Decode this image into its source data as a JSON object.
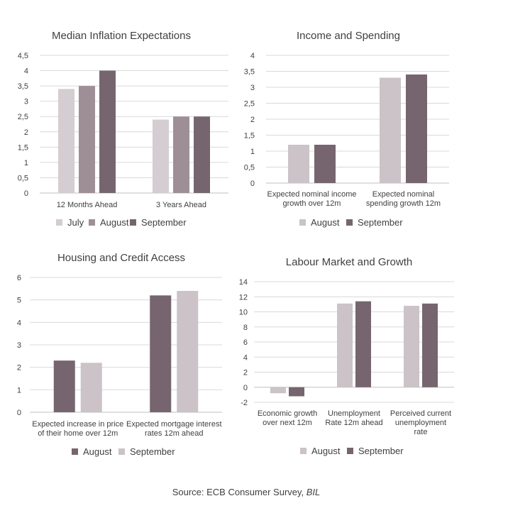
{
  "colors": {
    "July": "#d4cdd1",
    "August": "#9e8f97",
    "September": "#76656f",
    "August_light": "#cbc3c7",
    "September_light": "#cbc3c7",
    "August_dark": "#76656f",
    "September_dark": "#76656f",
    "grid": "#d9d9d9",
    "text": "#404040"
  },
  "source": {
    "prefix": "Source: ECB Consumer Survey, ",
    "italic": "BIL"
  },
  "chart_data": [
    {
      "id": "inflation",
      "type": "bar",
      "title": "Median Inflation Expectations",
      "categories": [
        [
          "12 Months Ahead"
        ],
        [
          "3 Years Ahead"
        ]
      ],
      "series": [
        {
          "name": "July",
          "values": [
            3.4,
            2.4
          ],
          "color": "#d4cdd1"
        },
        {
          "name": "August",
          "values": [
            3.5,
            2.5
          ],
          "color": "#9e8f97"
        },
        {
          "name": "September",
          "values": [
            4.0,
            2.5
          ],
          "color": "#76656f"
        }
      ],
      "ylim": [
        0,
        4.5
      ],
      "ticks": [
        "0",
        "0,5",
        "1",
        "1,5",
        "2",
        "2,5",
        "3",
        "3,5",
        "4",
        "4,5"
      ],
      "tickValues": [
        0,
        0.5,
        1,
        1.5,
        2,
        2.5,
        3,
        3.5,
        4,
        4.5
      ],
      "grid": true,
      "legend": "bottom"
    },
    {
      "id": "income",
      "type": "bar",
      "title": "Income and Spending",
      "categories": [
        [
          "Expected nominal income",
          "growth over 12m"
        ],
        [
          "Expected nominal",
          "spending growth 12m"
        ]
      ],
      "series": [
        {
          "name": "August",
          "values": [
            1.2,
            3.3
          ],
          "color": "#cbc3c7"
        },
        {
          "name": "September",
          "values": [
            1.2,
            3.4
          ],
          "color": "#76656f"
        }
      ],
      "ylim": [
        0,
        4
      ],
      "ticks": [
        "0",
        "0,5",
        "1",
        "1,5",
        "2",
        "2,5",
        "3",
        "3,5",
        "4"
      ],
      "tickValues": [
        0,
        0.5,
        1,
        1.5,
        2,
        2.5,
        3,
        3.5,
        4
      ],
      "grid": true,
      "legend": "bottom"
    },
    {
      "id": "housing",
      "type": "bar",
      "title": "Housing and Credit Access",
      "categories": [
        [
          "Expected increase in price",
          "of their home over 12m"
        ],
        [
          "Expected mortgage interest",
          "rates 12m ahead"
        ]
      ],
      "series": [
        {
          "name": "August",
          "values": [
            2.3,
            5.2
          ],
          "color": "#76656f"
        },
        {
          "name": "September",
          "values": [
            2.2,
            5.4
          ],
          "color": "#cbc3c7"
        }
      ],
      "ylim": [
        0,
        6
      ],
      "ticks": [
        "0",
        "1",
        "2",
        "3",
        "4",
        "5",
        "6"
      ],
      "tickValues": [
        0,
        1,
        2,
        3,
        4,
        5,
        6
      ],
      "grid": true,
      "legend": "bottom"
    },
    {
      "id": "labour",
      "type": "bar",
      "title": "Labour Market and Growth",
      "categories": [
        [
          "Economic growth",
          "over next 12m"
        ],
        [
          "Unemployment",
          "Rate 12m ahead"
        ],
        [
          "Perceived current",
          "unemployment",
          "rate"
        ]
      ],
      "series": [
        {
          "name": "August",
          "values": [
            -0.8,
            11.1,
            10.8
          ],
          "color": "#cbc3c7"
        },
        {
          "name": "September",
          "values": [
            -1.2,
            11.4,
            11.1
          ],
          "color": "#76656f"
        }
      ],
      "ylim": [
        -2,
        14
      ],
      "ticks": [
        "-2",
        "0",
        "2",
        "4",
        "6",
        "8",
        "10",
        "12",
        "14"
      ],
      "tickValues": [
        -2,
        0,
        2,
        4,
        6,
        8,
        10,
        12,
        14
      ],
      "grid": true,
      "legend": "bottom"
    }
  ]
}
